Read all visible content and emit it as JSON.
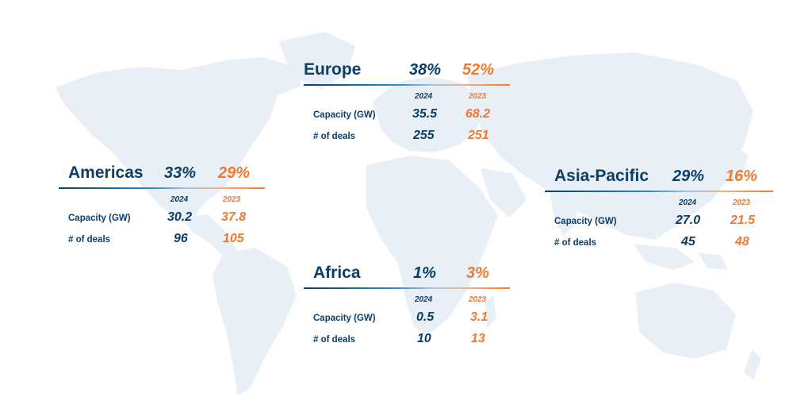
{
  "colors": {
    "navy": "#0d3e66",
    "orange": "#ef7a2e",
    "map": "#e8eff7"
  },
  "background": "world-map-silhouette",
  "regions": [
    {
      "name": "Europe",
      "pct_2024": "38%",
      "pct_2023": "52%",
      "year_2024": "2024",
      "year_2023": "2023",
      "capacity_label": "Capacity (GW)",
      "capacity_2024": "35.5",
      "capacity_2023": "68.2",
      "deals_label": "# of deals",
      "deals_2024": "255",
      "deals_2023": "251"
    },
    {
      "name": "Americas",
      "pct_2024": "33%",
      "pct_2023": "29%",
      "year_2024": "2024",
      "year_2023": "2023",
      "capacity_label": "Capacity (GW)",
      "capacity_2024": "30.2",
      "capacity_2023": "37.8",
      "deals_label": "# of deals",
      "deals_2024": "96",
      "deals_2023": "105"
    },
    {
      "name": "Asia-Pacific",
      "pct_2024": "29%",
      "pct_2023": "16%",
      "year_2024": "2024",
      "year_2023": "2023",
      "capacity_label": "Capacity (GW)",
      "capacity_2024": "27.0",
      "capacity_2023": "21.5",
      "deals_label": "# of deals",
      "deals_2024": "45",
      "deals_2023": "48"
    },
    {
      "name": "Africa",
      "pct_2024": "1%",
      "pct_2023": "3%",
      "year_2024": "2024",
      "year_2023": "2023",
      "capacity_label": "Capacity (GW)",
      "capacity_2024": "0.5",
      "capacity_2023": "3.1",
      "deals_label": "# of deals",
      "deals_2024": "10",
      "deals_2023": "13"
    }
  ]
}
